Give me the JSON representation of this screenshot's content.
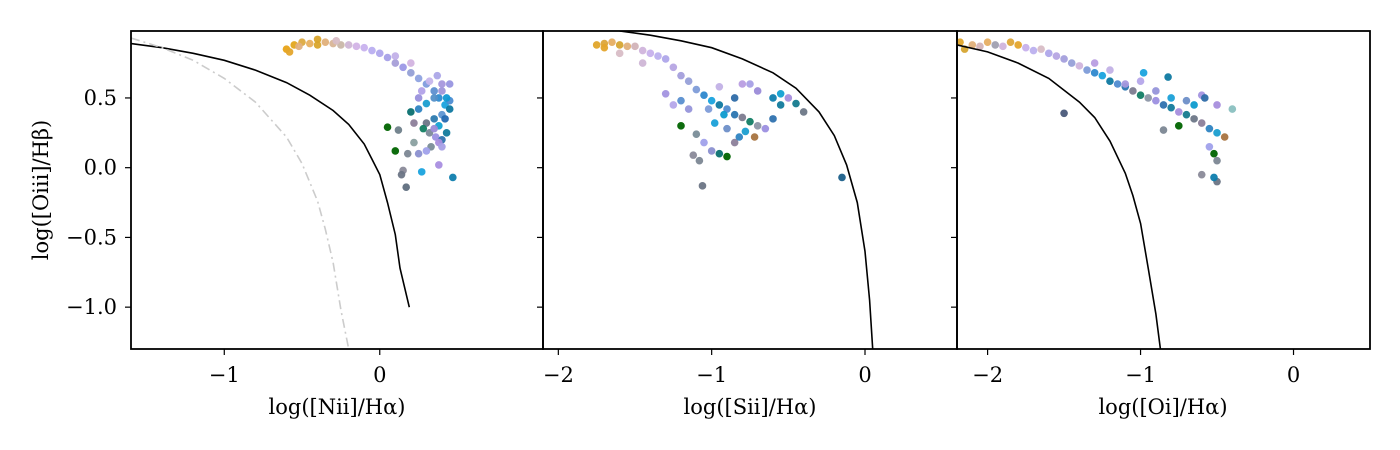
{
  "chart_data": [
    {
      "type": "scatter",
      "panel": "left",
      "xlabel": "log([Nii]/Hα)",
      "ylabel": "log([Oiii]/Hβ)",
      "xlim": [
        -1.6,
        1.05
      ],
      "ylim": [
        -1.3,
        0.98
      ],
      "xticks": [
        -1,
        0
      ],
      "xtick_labels": [
        "−1",
        "0"
      ],
      "yticks": [
        0.5,
        0.0,
        -0.5,
        -1.0
      ],
      "ytick_labels": [
        "0.5",
        "0.0",
        "−0.5",
        "−1.0"
      ],
      "grid": false,
      "curves": [
        {
          "style": "solid",
          "color": "#000000",
          "x": [
            -1.6,
            -1.4,
            -1.2,
            -1.0,
            -0.8,
            -0.6,
            -0.45,
            -0.3,
            -0.2,
            -0.1,
            -0.05,
            0.0,
            0.05,
            0.1,
            0.13,
            0.19
          ],
          "y": [
            0.89,
            0.86,
            0.82,
            0.77,
            0.7,
            0.61,
            0.52,
            0.41,
            0.31,
            0.17,
            0.06,
            -0.05,
            -0.25,
            -0.48,
            -0.72,
            -1.0
          ]
        },
        {
          "style": "dashdot",
          "color": "#cccccc",
          "x": [
            -1.6,
            -1.4,
            -1.2,
            -1.0,
            -0.8,
            -0.6,
            -0.5,
            -0.4,
            -0.35,
            -0.3,
            -0.25,
            -0.2
          ],
          "y": [
            0.93,
            0.86,
            0.77,
            0.64,
            0.47,
            0.22,
            0.03,
            -0.24,
            -0.44,
            -0.68,
            -1.02,
            -1.3
          ]
        }
      ],
      "points": [
        [
          -0.6,
          0.85,
          "#E8A317"
        ],
        [
          -0.55,
          0.88,
          "#E3A61E"
        ],
        [
          -0.5,
          0.9,
          "#DDAA40"
        ],
        [
          -0.45,
          0.89,
          "#E8B060"
        ],
        [
          -0.4,
          0.88,
          "#D9A52C"
        ],
        [
          -0.35,
          0.9,
          "#E0B07A"
        ],
        [
          -0.3,
          0.89,
          "#D8B596"
        ],
        [
          -0.25,
          0.88,
          "#C9B7A9"
        ],
        [
          -0.2,
          0.88,
          "#CFB6D6"
        ],
        [
          -0.15,
          0.87,
          "#D2B3E6"
        ],
        [
          -0.1,
          0.86,
          "#C8B2EE"
        ],
        [
          -0.05,
          0.84,
          "#B9AEF0"
        ],
        [
          0.0,
          0.82,
          "#AFA6EC"
        ],
        [
          0.05,
          0.79,
          "#A6A0E8"
        ],
        [
          0.1,
          0.75,
          "#A79ED8"
        ],
        [
          0.15,
          0.72,
          "#9C98E6"
        ],
        [
          0.2,
          0.68,
          "#95A0D6"
        ],
        [
          0.25,
          0.64,
          "#8FA3E0"
        ],
        [
          0.3,
          0.6,
          "#7F9CDD"
        ],
        [
          0.35,
          0.55,
          "#5E8FD0"
        ],
        [
          0.38,
          0.5,
          "#2E8BD0"
        ],
        [
          0.42,
          0.45,
          "#1AA3DE"
        ],
        [
          0.45,
          0.42,
          "#0F78A0"
        ],
        [
          0.4,
          0.38,
          "#5E96D3"
        ],
        [
          0.35,
          0.35,
          "#2C7AAF"
        ],
        [
          0.3,
          0.32,
          "#6D7687"
        ],
        [
          0.28,
          0.28,
          "#127E62"
        ],
        [
          0.32,
          0.25,
          "#7C8A99"
        ],
        [
          0.36,
          0.22,
          "#9C90E3"
        ],
        [
          0.4,
          0.2,
          "#2F73AE"
        ],
        [
          0.43,
          0.25,
          "#127B9C"
        ],
        [
          0.38,
          0.18,
          "#A98EDD"
        ],
        [
          0.33,
          0.15,
          "#7A8D98"
        ],
        [
          0.3,
          0.12,
          "#A0A1EB"
        ],
        [
          0.25,
          0.1,
          "#8B90D0"
        ],
        [
          0.2,
          0.4,
          "#0A7070"
        ],
        [
          0.22,
          0.32,
          "#8C7F9A"
        ],
        [
          0.25,
          0.42,
          "#2E84C2"
        ],
        [
          0.3,
          0.46,
          "#1A9ED0"
        ],
        [
          0.35,
          0.5,
          "#5490C8"
        ],
        [
          0.4,
          0.55,
          "#9F96D9"
        ],
        [
          0.45,
          0.48,
          "#4C8CD2"
        ],
        [
          0.42,
          0.35,
          "#2469B1"
        ],
        [
          0.38,
          0.3,
          "#13A1D2"
        ],
        [
          0.35,
          0.28,
          "#9B8BD8"
        ],
        [
          0.4,
          0.15,
          "#A8A0E6"
        ],
        [
          0.22,
          0.18,
          "#8AA0A0"
        ],
        [
          0.18,
          0.1,
          "#7C8794"
        ],
        [
          0.05,
          0.29,
          "#006400"
        ],
        [
          0.12,
          0.27,
          "#6F7F8A"
        ],
        [
          0.1,
          0.12,
          "#006400"
        ],
        [
          0.15,
          -0.02,
          "#8A8A99"
        ],
        [
          0.14,
          -0.05,
          "#6B7585"
        ],
        [
          0.17,
          -0.14,
          "#5F6E7E"
        ],
        [
          0.27,
          -0.03,
          "#1AA3DE"
        ],
        [
          0.38,
          0.02,
          "#A98EE0"
        ],
        [
          0.47,
          -0.07,
          "#0F7EAE"
        ],
        [
          0.25,
          0.5,
          "#9990DC"
        ],
        [
          0.27,
          0.55,
          "#B2A2E8"
        ],
        [
          0.32,
          0.62,
          "#C6B6EC"
        ],
        [
          0.2,
          0.75,
          "#D3B4E0"
        ],
        [
          0.1,
          0.8,
          "#C2B0E8"
        ],
        [
          -0.4,
          0.92,
          "#D8A42B"
        ],
        [
          -0.52,
          0.87,
          "#E0B080"
        ],
        [
          -0.58,
          0.83,
          "#E4A52C"
        ],
        [
          -0.28,
          0.91,
          "#D8BDC6"
        ],
        [
          0.43,
          0.5,
          "#109AD3"
        ],
        [
          0.45,
          0.6,
          "#9895E0"
        ],
        [
          0.4,
          0.6,
          "#A797DD"
        ],
        [
          0.37,
          0.66,
          "#ACA6E8"
        ]
      ]
    },
    {
      "type": "scatter",
      "panel": "middle",
      "xlabel": "log([Sii]/Hα)",
      "xlim": [
        -2.1,
        0.6
      ],
      "ylim": [
        -1.3,
        0.98
      ],
      "xticks": [
        -2,
        -1,
        0
      ],
      "xtick_labels": [
        "−2",
        "−1",
        "0"
      ],
      "grid": false,
      "curves": [
        {
          "style": "solid",
          "color": "#000000",
          "x": [
            -1.6,
            -1.4,
            -1.2,
            -1.0,
            -0.8,
            -0.6,
            -0.45,
            -0.3,
            -0.2,
            -0.12,
            -0.05,
            0.0,
            0.03,
            0.05
          ],
          "y": [
            0.98,
            0.95,
            0.91,
            0.86,
            0.78,
            0.68,
            0.57,
            0.4,
            0.23,
            0.02,
            -0.25,
            -0.6,
            -0.95,
            -1.3
          ]
        }
      ],
      "points": [
        [
          -1.75,
          0.88,
          "#E0A52A"
        ],
        [
          -1.7,
          0.89,
          "#DDA63A"
        ],
        [
          -1.65,
          0.9,
          "#E6AE62"
        ],
        [
          -1.6,
          0.88,
          "#D6A531"
        ],
        [
          -1.55,
          0.87,
          "#E0B07A"
        ],
        [
          -1.5,
          0.87,
          "#D2B3B8"
        ],
        [
          -1.45,
          0.84,
          "#D0B4DC"
        ],
        [
          -1.4,
          0.82,
          "#C7B1EC"
        ],
        [
          -1.35,
          0.8,
          "#BCB0EE"
        ],
        [
          -1.3,
          0.78,
          "#AFA6EA"
        ],
        [
          -1.25,
          0.72,
          "#B6A5E3"
        ],
        [
          -1.2,
          0.66,
          "#A49FDC"
        ],
        [
          -1.15,
          0.62,
          "#97A0D8"
        ],
        [
          -1.1,
          0.56,
          "#7E9CD8"
        ],
        [
          -1.05,
          0.52,
          "#2E88CE"
        ],
        [
          -1.0,
          0.48,
          "#1AA3DE"
        ],
        [
          -0.95,
          0.45,
          "#0F79A1"
        ],
        [
          -0.9,
          0.42,
          "#4F8BD0"
        ],
        [
          -0.85,
          0.38,
          "#2A75B0"
        ],
        [
          -0.8,
          0.36,
          "#7C7B8F"
        ],
        [
          -0.75,
          0.33,
          "#127D65"
        ],
        [
          -0.7,
          0.3,
          "#8C96A6"
        ],
        [
          -0.65,
          0.28,
          "#9C8FE0"
        ],
        [
          -0.6,
          0.35,
          "#2F72AF"
        ],
        [
          -0.55,
          0.45,
          "#127B9D"
        ],
        [
          -0.5,
          0.5,
          "#A68EDD"
        ],
        [
          -0.45,
          0.46,
          "#157A8E"
        ],
        [
          -0.4,
          0.4,
          "#6D7787"
        ],
        [
          -1.2,
          0.3,
          "#006400"
        ],
        [
          -1.1,
          0.24,
          "#7A8D98"
        ],
        [
          -1.05,
          0.18,
          "#A0A1EB"
        ],
        [
          -1.0,
          0.12,
          "#8B90D0"
        ],
        [
          -0.95,
          0.1,
          "#0A7070"
        ],
        [
          -0.9,
          0.08,
          "#006400"
        ],
        [
          -0.85,
          0.18,
          "#8C7F9A"
        ],
        [
          -0.82,
          0.22,
          "#2E84C2"
        ],
        [
          -0.78,
          0.26,
          "#1A9ED0"
        ],
        [
          -0.72,
          0.22,
          "#A87440"
        ],
        [
          -1.08,
          0.05,
          "#7C8794"
        ],
        [
          -1.06,
          -0.13,
          "#6B7585"
        ],
        [
          -1.12,
          0.09,
          "#8A8A99"
        ],
        [
          -0.15,
          -0.07,
          "#1B5F8A"
        ],
        [
          -0.6,
          0.5,
          "#0F7EAE"
        ],
        [
          -0.55,
          0.53,
          "#13A1D2"
        ],
        [
          -0.7,
          0.55,
          "#9B8BD8"
        ],
        [
          -0.75,
          0.6,
          "#A8A0E6"
        ],
        [
          -0.8,
          0.6,
          "#B89DE1"
        ],
        [
          -0.95,
          0.58,
          "#C2B1E6"
        ],
        [
          -1.2,
          0.48,
          "#5A8FD0"
        ],
        [
          -1.15,
          0.42,
          "#9695DA"
        ],
        [
          -0.98,
          0.32,
          "#1AA0D8"
        ],
        [
          -0.9,
          0.28,
          "#6E8FC8"
        ],
        [
          -1.3,
          0.53,
          "#A394E0"
        ],
        [
          -1.25,
          0.45,
          "#B5A6EA"
        ],
        [
          -1.45,
          0.75,
          "#CFB6D6"
        ],
        [
          -1.6,
          0.82,
          "#D8BDC6"
        ],
        [
          -1.7,
          0.86,
          "#E4A52C"
        ],
        [
          -0.85,
          0.5,
          "#2E6CA8"
        ],
        [
          -0.92,
          0.38,
          "#0D9BCF"
        ],
        [
          -1.02,
          0.42,
          "#7E9CD8"
        ]
      ]
    },
    {
      "type": "scatter",
      "panel": "right",
      "xlabel": "log([Oi]/Hα)",
      "xlim": [
        -2.2,
        0.5
      ],
      "ylim": [
        -1.3,
        0.98
      ],
      "xticks": [
        -2,
        -1,
        0
      ],
      "xtick_labels": [
        "−2",
        "−1",
        "0"
      ],
      "grid": false,
      "curves": [
        {
          "style": "solid",
          "color": "#000000",
          "x": [
            -2.2,
            -2.0,
            -1.8,
            -1.6,
            -1.4,
            -1.3,
            -1.2,
            -1.1,
            -1.05,
            -1.0,
            -0.95,
            -0.9,
            -0.87
          ],
          "y": [
            0.88,
            0.83,
            0.75,
            0.64,
            0.47,
            0.36,
            0.19,
            -0.04,
            -0.2,
            -0.4,
            -0.72,
            -1.05,
            -1.3
          ]
        }
      ],
      "points": [
        [
          -2.18,
          0.9,
          "#E0A52A"
        ],
        [
          -2.15,
          0.85,
          "#D6A531"
        ],
        [
          -2.1,
          0.88,
          "#E0B07A"
        ],
        [
          -2.05,
          0.87,
          "#D2B3B8"
        ],
        [
          -2.0,
          0.9,
          "#E6AE62"
        ],
        [
          -1.95,
          0.88,
          "#A0A0B0"
        ],
        [
          -1.9,
          0.87,
          "#D0B4DC"
        ],
        [
          -1.85,
          0.9,
          "#DDA63A"
        ],
        [
          -1.8,
          0.88,
          "#E4A52C"
        ],
        [
          -1.75,
          0.86,
          "#C7B1EC"
        ],
        [
          -1.7,
          0.84,
          "#BCB0EE"
        ],
        [
          -1.65,
          0.85,
          "#D8BDC6"
        ],
        [
          -1.6,
          0.82,
          "#AFA6EA"
        ],
        [
          -1.55,
          0.8,
          "#B6A5E3"
        ],
        [
          -1.5,
          0.78,
          "#A49FDC"
        ],
        [
          -1.45,
          0.75,
          "#97A0D8"
        ],
        [
          -1.4,
          0.73,
          "#D0B4DC"
        ],
        [
          -1.35,
          0.7,
          "#7E9CD8"
        ],
        [
          -1.3,
          0.68,
          "#2E88CE"
        ],
        [
          -1.25,
          0.66,
          "#1AA3DE"
        ],
        [
          -1.2,
          0.62,
          "#0F79A1"
        ],
        [
          -1.15,
          0.6,
          "#4F8BD0"
        ],
        [
          -1.1,
          0.58,
          "#2A75B0"
        ],
        [
          -1.05,
          0.55,
          "#7C7B8F"
        ],
        [
          -1.0,
          0.52,
          "#127D65"
        ],
        [
          -0.95,
          0.5,
          "#8C96A6"
        ],
        [
          -0.9,
          0.48,
          "#9C8FE0"
        ],
        [
          -0.85,
          0.45,
          "#2F72AF"
        ],
        [
          -0.8,
          0.43,
          "#127B9D"
        ],
        [
          -0.75,
          0.4,
          "#A68EDD"
        ],
        [
          -0.7,
          0.38,
          "#157A8E"
        ],
        [
          -0.65,
          0.35,
          "#6D7787"
        ],
        [
          -0.6,
          0.32,
          "#8C7F9A"
        ],
        [
          -0.55,
          0.28,
          "#2E84C2"
        ],
        [
          -0.5,
          0.25,
          "#1A9ED0"
        ],
        [
          -0.45,
          0.22,
          "#A87440"
        ],
        [
          -0.4,
          0.42,
          "#8AC0C0"
        ],
        [
          -0.5,
          0.45,
          "#A88EDD"
        ],
        [
          -0.55,
          0.15,
          "#A0A1EB"
        ],
        [
          -0.52,
          0.1,
          "#006400"
        ],
        [
          -0.5,
          0.05,
          "#7C8794"
        ],
        [
          -0.5,
          -0.1,
          "#6B7585"
        ],
        [
          -0.6,
          -0.05,
          "#8A8A99"
        ],
        [
          -0.52,
          -0.07,
          "#0F7EAE"
        ],
        [
          -1.5,
          0.39,
          "#4A5A7A"
        ],
        [
          -0.85,
          0.27,
          "#7C8794"
        ],
        [
          -0.75,
          0.3,
          "#006400"
        ],
        [
          -1.1,
          0.6,
          "#A797DD"
        ],
        [
          -1.0,
          0.62,
          "#B5A6EA"
        ],
        [
          -0.9,
          0.55,
          "#9695DA"
        ],
        [
          -0.8,
          0.5,
          "#1AA0D8"
        ],
        [
          -0.7,
          0.48,
          "#6E8FC8"
        ],
        [
          -0.6,
          0.52,
          "#A394E0"
        ],
        [
          -0.58,
          0.5,
          "#2E6CA8"
        ],
        [
          -0.65,
          0.45,
          "#0D9BCF"
        ],
        [
          -0.82,
          0.65,
          "#0F79A1"
        ],
        [
          -1.2,
          0.7,
          "#C2B1E6"
        ],
        [
          -1.3,
          0.75,
          "#B89DE1"
        ],
        [
          -0.98,
          0.68,
          "#1AA3DE"
        ]
      ]
    }
  ]
}
